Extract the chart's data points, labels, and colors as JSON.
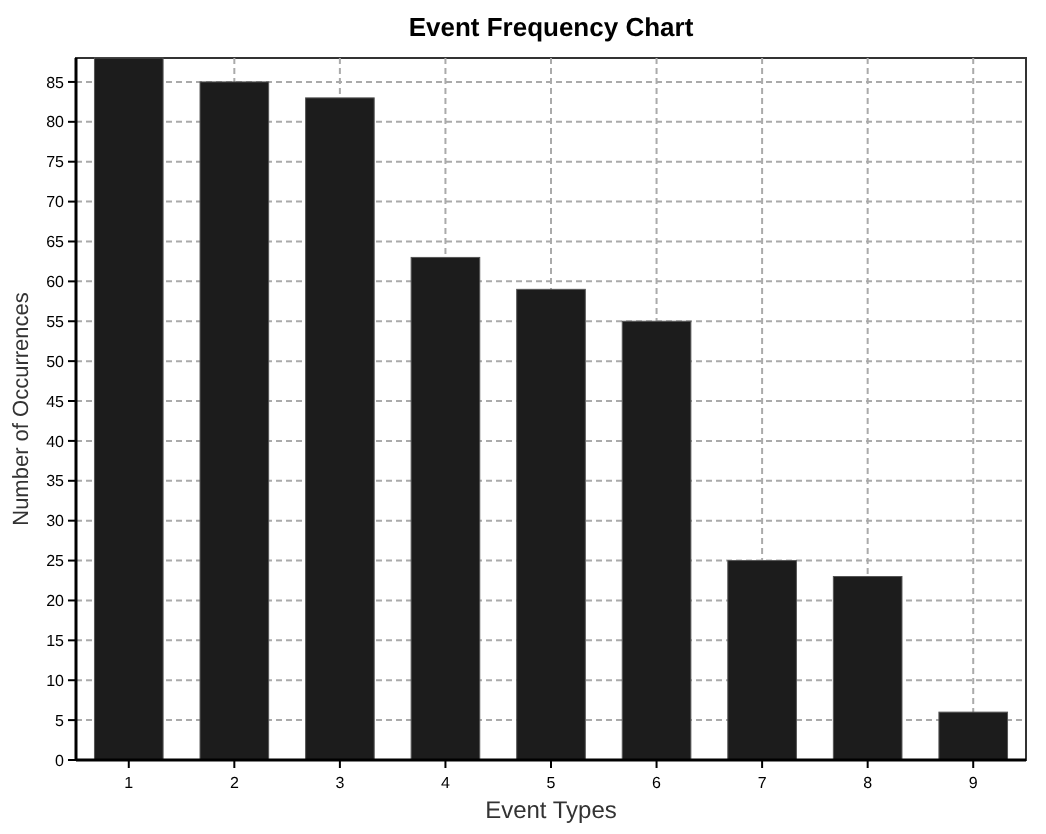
{
  "chart_data": {
    "type": "bar",
    "title": "Event Frequency Chart",
    "xlabel": "Event Types",
    "ylabel": "Number of Occurrences",
    "categories": [
      "1",
      "2",
      "3",
      "4",
      "5",
      "6",
      "7",
      "8",
      "9"
    ],
    "values": [
      88,
      85,
      83,
      63,
      59,
      55,
      25,
      23,
      6
    ],
    "color": "#1c1c1c",
    "ylim": [
      0,
      88
    ],
    "yticks": [
      0,
      5,
      10,
      15,
      20,
      25,
      30,
      35,
      40,
      45,
      50,
      55,
      60,
      65,
      70,
      75,
      80,
      85
    ],
    "grid": true
  }
}
